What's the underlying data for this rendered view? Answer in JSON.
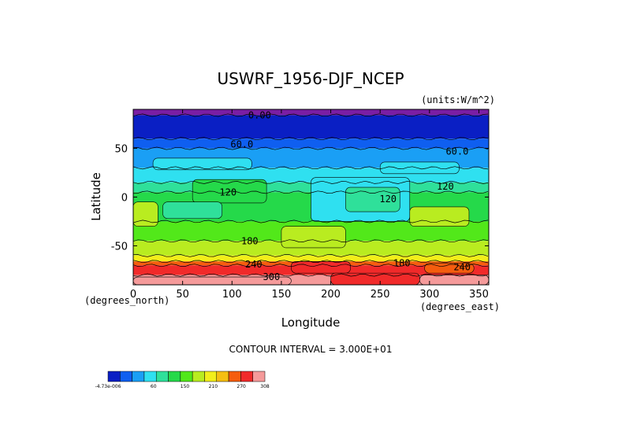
{
  "chart_data": {
    "type": "heatmap",
    "title": "USWRF_1956-DJF_NCEP",
    "units": "(units:W/m^2)",
    "xlabel": "Longitude",
    "ylabel": "Latitude",
    "x_unit_label": "(degrees_east)",
    "y_unit_label": "(degrees_north)",
    "xlim": [
      0,
      360
    ],
    "ylim": [
      -90,
      90
    ],
    "x_ticks": [
      0,
      50,
      100,
      150,
      200,
      250,
      300,
      350
    ],
    "y_ticks": [
      50,
      0,
      -50
    ],
    "contour_interval_text": "CONTOUR INTERVAL = 3.000E+01",
    "contour_labels": [
      {
        "text": "0.00",
        "lon": 128,
        "lat": 84
      },
      {
        "text": "60.0",
        "lon": 110,
        "lat": 54
      },
      {
        "text": "60.0",
        "lon": 328,
        "lat": 47
      },
      {
        "text": "120",
        "lon": 96,
        "lat": 5
      },
      {
        "text": "120",
        "lon": 258,
        "lat": -2
      },
      {
        "text": "120",
        "lon": 316,
        "lat": 11
      },
      {
        "text": "180",
        "lon": 118,
        "lat": -45
      },
      {
        "text": "180",
        "lon": 272,
        "lat": -68
      },
      {
        "text": "240",
        "lon": 122,
        "lat": -69
      },
      {
        "text": "240",
        "lon": 333,
        "lat": -72
      },
      {
        "text": "300",
        "lon": 140,
        "lat": -82
      }
    ],
    "colorbar": {
      "colors": [
        "#0a1fc4",
        "#0f5ff0",
        "#1a9ff5",
        "#2fe0f0",
        "#2fe09a",
        "#25d94a",
        "#52e81a",
        "#b9ec20",
        "#f2ee1a",
        "#f5be12",
        "#f55d0e",
        "#f12a2a",
        "#f59a9a"
      ],
      "tick_labels": [
        "-4.73e-006",
        "60",
        "150",
        "210",
        "270",
        "308"
      ]
    },
    "latitude_bands": [
      {
        "lat_top": 90,
        "lat_bottom": 84,
        "color": "#7a1ea3"
      },
      {
        "lat_top": 84,
        "lat_bottom": 60,
        "color": "#0a1fc4"
      },
      {
        "lat_top": 60,
        "lat_bottom": 50,
        "color": "#0f5ff0"
      },
      {
        "lat_top": 50,
        "lat_bottom": 30,
        "color": "#1a9ff5"
      },
      {
        "lat_top": 30,
        "lat_bottom": 15,
        "color": "#2fe0f0"
      },
      {
        "lat_top": 15,
        "lat_bottom": 5,
        "color": "#2fe09a"
      },
      {
        "lat_top": 5,
        "lat_bottom": -25,
        "color": "#25d94a"
      },
      {
        "lat_top": -25,
        "lat_bottom": -45,
        "color": "#52e81a"
      },
      {
        "lat_top": -45,
        "lat_bottom": -60,
        "color": "#b9ec20"
      },
      {
        "lat_top": -60,
        "lat_bottom": -66,
        "color": "#f2ee1a"
      },
      {
        "lat_top": -66,
        "lat_bottom": -70,
        "color": "#f55d0e"
      },
      {
        "lat_top": -70,
        "lat_bottom": -80,
        "color": "#f12a2a"
      },
      {
        "lat_top": -80,
        "lat_bottom": -90,
        "color": "#f59a9a"
      }
    ],
    "patches": [
      {
        "lon": [
          60,
          135
        ],
        "lat": [
          -6,
          18
        ],
        "color": "#25d94a"
      },
      {
        "lon": [
          180,
          280
        ],
        "lat": [
          -25,
          20
        ],
        "color": "#2fe0f0"
      },
      {
        "lon": [
          215,
          270
        ],
        "lat": [
          -15,
          10
        ],
        "color": "#2fe09a"
      },
      {
        "lon": [
          150,
          215
        ],
        "lat": [
          -52,
          -30
        ],
        "color": "#b9ec20"
      },
      {
        "lon": [
          280,
          340
        ],
        "lat": [
          -30,
          -10
        ],
        "color": "#b9ec20"
      },
      {
        "lon": [
          0,
          25
        ],
        "lat": [
          -30,
          -5
        ],
        "color": "#b9ec20"
      },
      {
        "lon": [
          30,
          90
        ],
        "lat": [
          -22,
          -5
        ],
        "color": "#2fe09a"
      },
      {
        "lon": [
          160,
          220
        ],
        "lat": [
          -78,
          -66
        ],
        "color": "#f12a2a"
      },
      {
        "lon": [
          200,
          290
        ],
        "lat": [
          -90,
          -78
        ],
        "color": "#f12a2a"
      },
      {
        "lon": [
          290,
          360
        ],
        "lat": [
          -90,
          -80
        ],
        "color": "#f59a9a"
      },
      {
        "lon": [
          0,
          160
        ],
        "lat": [
          -90,
          -82
        ],
        "color": "#f59a9a"
      },
      {
        "lon": [
          295,
          345
        ],
        "lat": [
          -78,
          -68
        ],
        "color": "#f55d0e"
      },
      {
        "lon": [
          20,
          120
        ],
        "lat": [
          28,
          40
        ],
        "color": "#2fe0f0"
      },
      {
        "lon": [
          250,
          330
        ],
        "lat": [
          24,
          36
        ],
        "color": "#2fe0f0"
      }
    ]
  }
}
